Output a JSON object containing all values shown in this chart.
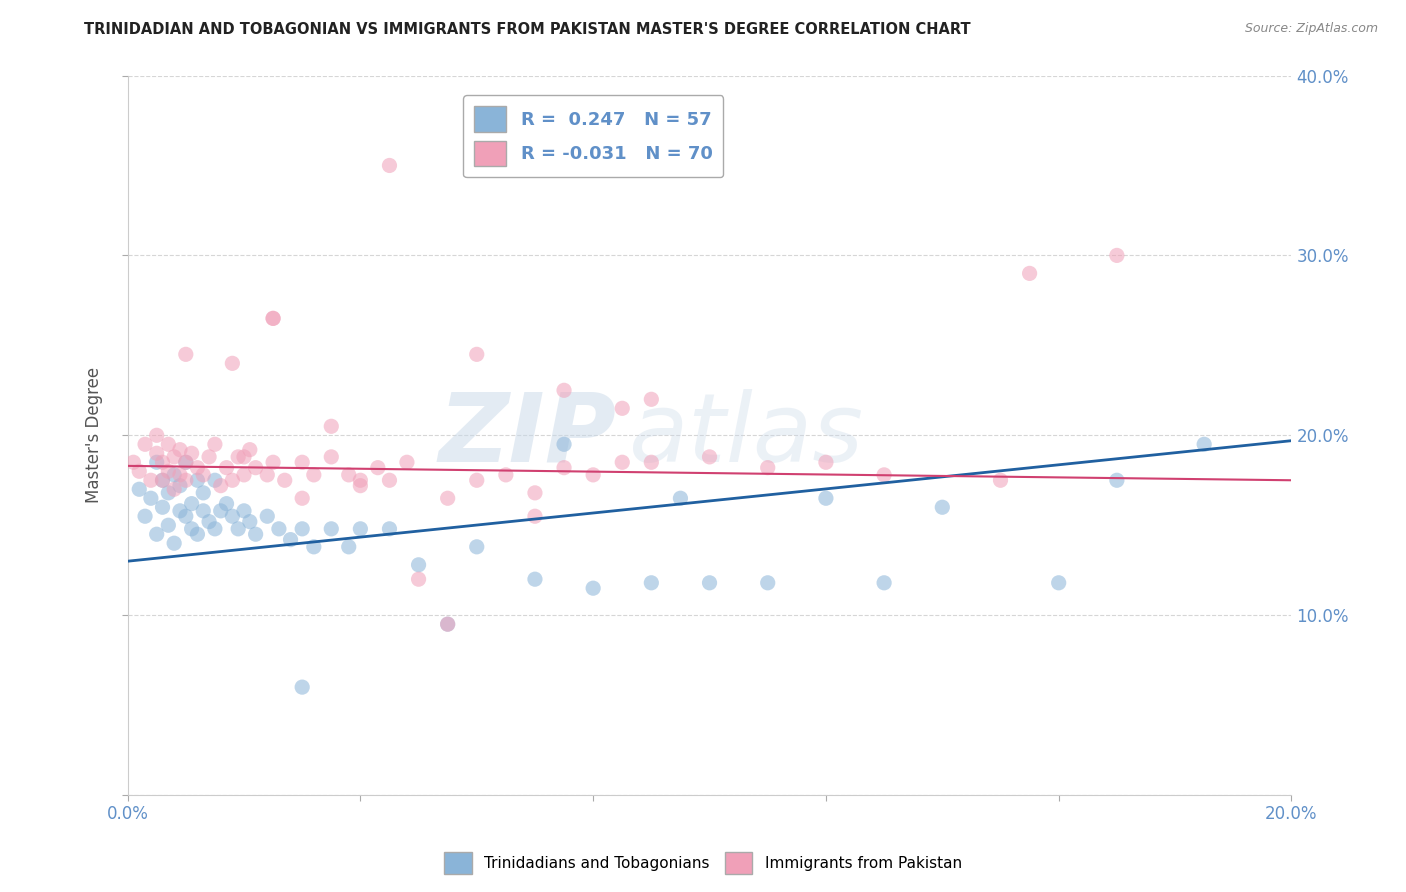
{
  "title": "TRINIDADIAN AND TOBAGONIAN VS IMMIGRANTS FROM PAKISTAN MASTER'S DEGREE CORRELATION CHART",
  "source": "Source: ZipAtlas.com",
  "ylabel": "Master's Degree",
  "xlim": [
    0.0,
    0.2
  ],
  "ylim": [
    0.0,
    0.4
  ],
  "xticks": [
    0.0,
    0.04,
    0.08,
    0.12,
    0.16,
    0.2
  ],
  "xtick_labels": [
    "0.0%",
    "",
    "",
    "",
    "",
    "20.0%"
  ],
  "yticks": [
    0.0,
    0.1,
    0.2,
    0.3,
    0.4
  ],
  "ytick_labels_right": [
    "",
    "10.0%",
    "20.0%",
    "30.0%",
    "40.0%"
  ],
  "legend_blue_label": "R =  0.247   N = 57",
  "legend_pink_label": "R = -0.031   N = 70",
  "bottom_legend_blue": "Trinidadians and Tobagonians",
  "bottom_legend_pink": "Immigrants from Pakistan",
  "blue_scatter_x": [
    0.002,
    0.003,
    0.004,
    0.005,
    0.005,
    0.006,
    0.006,
    0.007,
    0.007,
    0.008,
    0.008,
    0.009,
    0.009,
    0.01,
    0.01,
    0.011,
    0.011,
    0.012,
    0.012,
    0.013,
    0.013,
    0.014,
    0.015,
    0.015,
    0.016,
    0.017,
    0.018,
    0.019,
    0.02,
    0.021,
    0.022,
    0.024,
    0.026,
    0.028,
    0.03,
    0.032,
    0.035,
    0.038,
    0.04,
    0.045,
    0.05,
    0.06,
    0.07,
    0.08,
    0.09,
    0.1,
    0.11,
    0.12,
    0.13,
    0.14,
    0.16,
    0.17,
    0.185,
    0.095,
    0.075,
    0.055,
    0.03
  ],
  "blue_scatter_y": [
    0.17,
    0.155,
    0.165,
    0.145,
    0.185,
    0.16,
    0.175,
    0.15,
    0.168,
    0.14,
    0.178,
    0.158,
    0.172,
    0.155,
    0.185,
    0.148,
    0.162,
    0.145,
    0.175,
    0.158,
    0.168,
    0.152,
    0.148,
    0.175,
    0.158,
    0.162,
    0.155,
    0.148,
    0.158,
    0.152,
    0.145,
    0.155,
    0.148,
    0.142,
    0.148,
    0.138,
    0.148,
    0.138,
    0.148,
    0.148,
    0.128,
    0.138,
    0.12,
    0.115,
    0.118,
    0.118,
    0.118,
    0.165,
    0.118,
    0.16,
    0.118,
    0.175,
    0.195,
    0.165,
    0.195,
    0.095,
    0.06
  ],
  "pink_scatter_x": [
    0.001,
    0.002,
    0.003,
    0.004,
    0.005,
    0.005,
    0.006,
    0.006,
    0.007,
    0.007,
    0.008,
    0.008,
    0.009,
    0.009,
    0.01,
    0.01,
    0.011,
    0.012,
    0.013,
    0.014,
    0.015,
    0.016,
    0.017,
    0.018,
    0.019,
    0.02,
    0.021,
    0.022,
    0.024,
    0.025,
    0.027,
    0.03,
    0.032,
    0.035,
    0.038,
    0.04,
    0.043,
    0.045,
    0.048,
    0.05,
    0.055,
    0.06,
    0.065,
    0.07,
    0.075,
    0.08,
    0.09,
    0.1,
    0.11,
    0.12,
    0.13,
    0.15,
    0.17,
    0.035,
    0.025,
    0.06,
    0.09,
    0.018,
    0.055,
    0.155,
    0.085,
    0.045,
    0.025,
    0.01,
    0.07,
    0.04,
    0.02,
    0.075,
    0.03,
    0.085
  ],
  "pink_scatter_y": [
    0.185,
    0.18,
    0.195,
    0.175,
    0.19,
    0.2,
    0.185,
    0.175,
    0.195,
    0.18,
    0.17,
    0.188,
    0.178,
    0.192,
    0.185,
    0.175,
    0.19,
    0.182,
    0.178,
    0.188,
    0.195,
    0.172,
    0.182,
    0.175,
    0.188,
    0.178,
    0.192,
    0.182,
    0.178,
    0.185,
    0.175,
    0.185,
    0.178,
    0.188,
    0.178,
    0.172,
    0.182,
    0.175,
    0.185,
    0.12,
    0.165,
    0.175,
    0.178,
    0.168,
    0.182,
    0.178,
    0.185,
    0.188,
    0.182,
    0.185,
    0.178,
    0.175,
    0.3,
    0.205,
    0.265,
    0.245,
    0.22,
    0.24,
    0.095,
    0.29,
    0.215,
    0.35,
    0.265,
    0.245,
    0.155,
    0.175,
    0.188,
    0.225,
    0.165,
    0.185
  ],
  "blue_line_x": [
    0.0,
    0.2
  ],
  "blue_line_y": [
    0.13,
    0.197
  ],
  "pink_line_x": [
    0.0,
    0.2
  ],
  "pink_line_y": [
    0.183,
    0.175
  ],
  "blue_color": "#8ab4d8",
  "pink_color": "#f0a0b8",
  "blue_line_color": "#2060a0",
  "pink_line_color": "#d04070",
  "watermark_zip": "ZIP",
  "watermark_atlas": "atlas",
  "background_color": "#ffffff",
  "grid_color": "#cccccc",
  "tick_color": "#6090c8",
  "title_color": "#222222",
  "source_color": "#888888"
}
